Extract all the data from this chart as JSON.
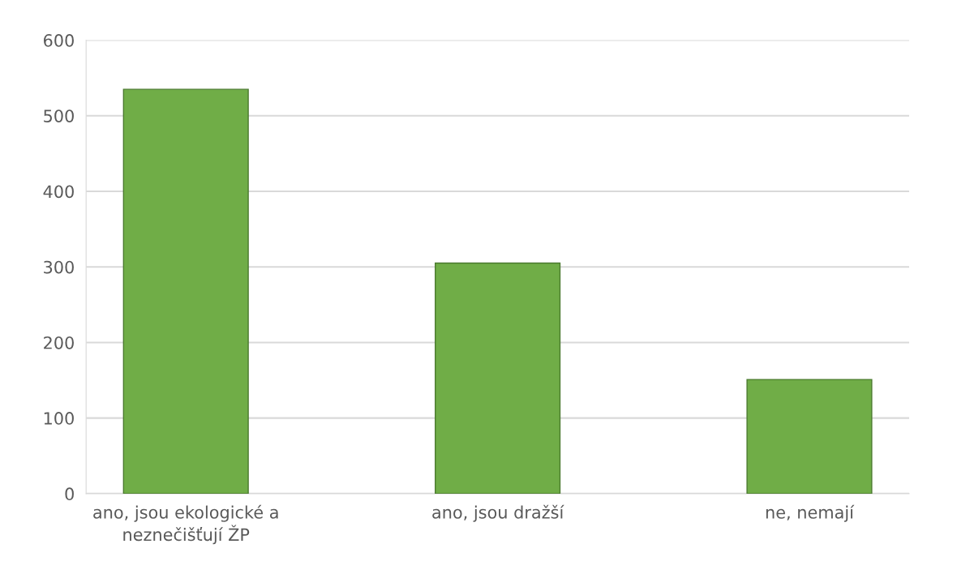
{
  "chart_data": {
    "type": "bar",
    "categories": [
      "ano, jsou ekologické a\nneznečišťují ŽP",
      "ano, jsou dražší",
      "ne, nemají"
    ],
    "values": [
      535,
      305,
      151
    ],
    "color": "#70ad47",
    "ylim": [
      0,
      600
    ],
    "yticks": [
      0,
      100,
      200,
      300,
      400,
      500,
      600
    ],
    "grid": "y"
  }
}
